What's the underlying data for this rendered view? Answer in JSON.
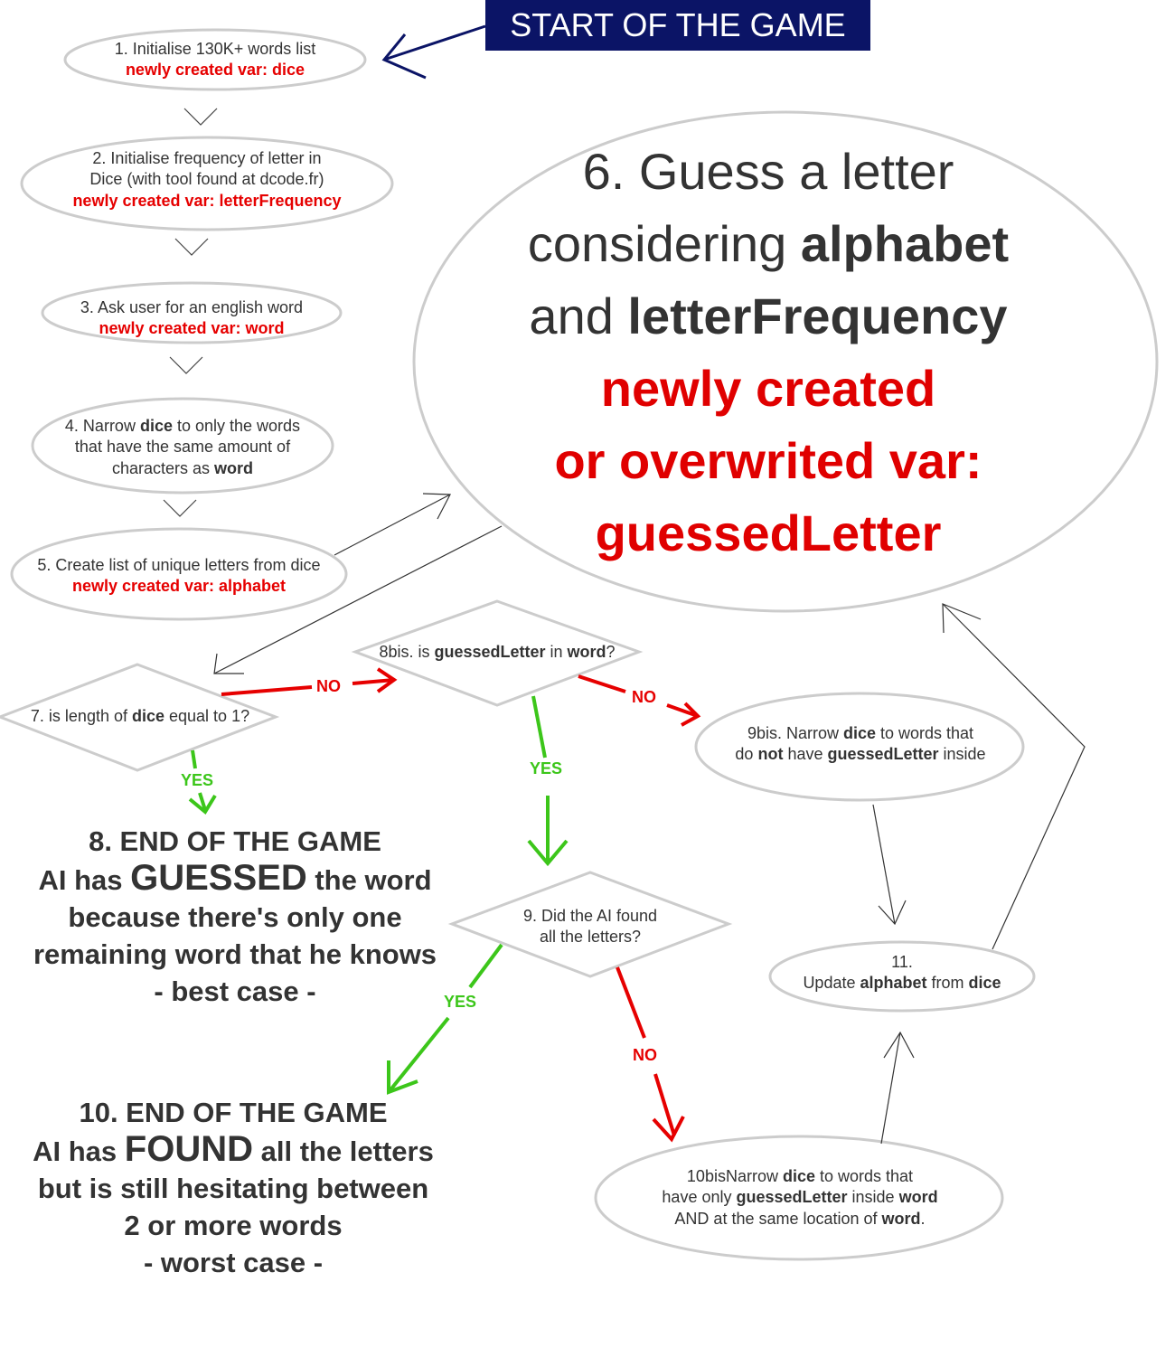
{
  "start_banner": "START OF THE GAME",
  "steps": {
    "s1": {
      "line1": "1. Initialise 130K+ words list",
      "var": "newly created var: dice"
    },
    "s2": {
      "line1": "2. Initialise frequency of letter in",
      "line2": "Dice (with tool found at dcode.fr)",
      "var": "newly created var: letterFrequency"
    },
    "s3": {
      "line1": "3. Ask user for an english word",
      "var": "newly created var: word"
    },
    "s4": {
      "a": "4. Narrow ",
      "b": "dice",
      "c": " to only the words",
      "line2": "that have the same amount of",
      "d": "characters as ",
      "e": "word"
    },
    "s5": {
      "line1": "5. Create list of unique letters from dice",
      "var": "newly created var: alphabet"
    },
    "s6": {
      "line1": "6. Guess a letter",
      "a": "considering ",
      "b": "alphabet",
      "c": "and ",
      "d": "letterFrequency",
      "red1": "newly created",
      "red2": "or overwrited var:",
      "red3": "guessedLetter"
    },
    "s7": {
      "a": "7. is length of ",
      "b": "dice",
      "c": " equal to 1?"
    },
    "s8bis": {
      "a": "8bis. is ",
      "b": "guessedLetter",
      "c": " in ",
      "d": "word",
      "e": "?"
    },
    "s9bis": {
      "a": "9bis. Narrow ",
      "b": "dice",
      "c": " to words that",
      "d": "do ",
      "e": "not",
      "f": " have ",
      "g": "guessedLetter",
      "h": " inside"
    },
    "s9": {
      "line1": "9. Did the AI found",
      "line2": "all the letters?"
    },
    "s10bis": {
      "a": "10bisNarrow ",
      "b": "dice",
      "c": " to words that",
      "d": "have only ",
      "e": "guessedLetter",
      "f": " inside ",
      "g": "word",
      "h": "AND at the same location of ",
      "i": "word",
      "j": "."
    },
    "s11": {
      "line1": "11.",
      "a": "Update ",
      "b": "alphabet",
      "c": " from ",
      "d": "dice"
    },
    "end8": {
      "line1": "8. END OF THE GAME",
      "a": "AI has ",
      "b": "GUESSED",
      "c": " the word",
      "line3": "because there's only one",
      "line4": "remaining word that he knows",
      "line5": "- best case -"
    },
    "end10": {
      "line1": "10. END OF THE GAME",
      "a": "AI has ",
      "b": "FOUND",
      "c": " all the letters",
      "line3": "but is still hesitating between",
      "line4": "2 or more words",
      "line5": "- worst case -"
    }
  },
  "edge_labels": {
    "no": "NO",
    "yes": "YES"
  },
  "colors": {
    "banner": "#0b1466",
    "var_red": "#e60000",
    "yes_green": "#3cc61a",
    "node_stroke": "#cccccc"
  }
}
